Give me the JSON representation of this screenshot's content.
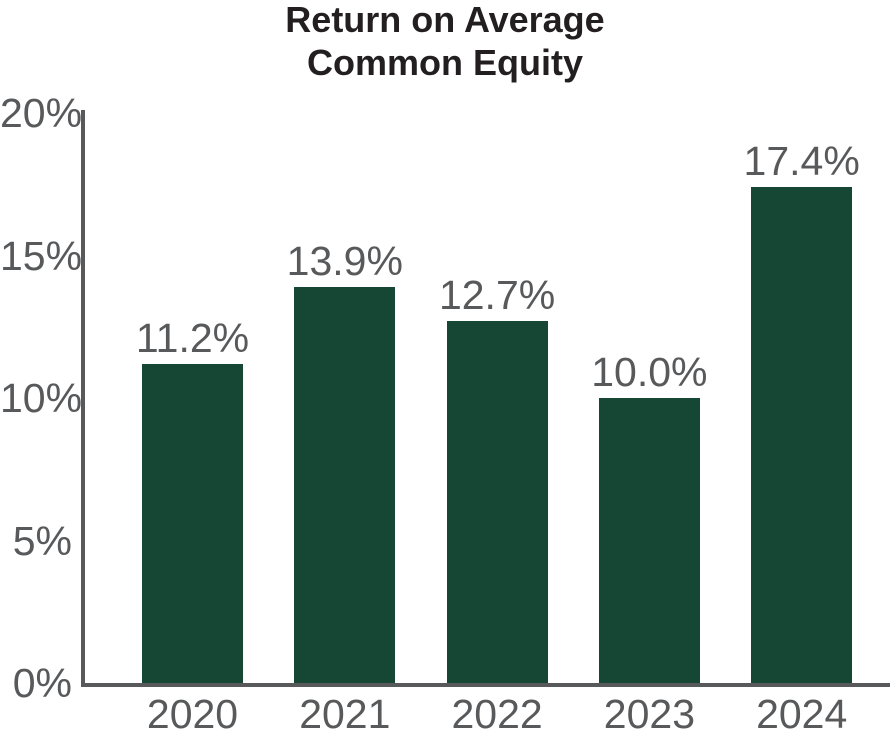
{
  "chart_data": {
    "type": "bar",
    "title": "Return on Average Common Equity",
    "title_lines": [
      "Return on Average",
      "Common Equity"
    ],
    "categories": [
      "2020",
      "2021",
      "2022",
      "2023",
      "2024"
    ],
    "values": [
      11.2,
      13.9,
      12.7,
      10.0,
      17.4
    ],
    "value_labels": [
      "11.2%",
      "13.9%",
      "12.7%",
      "10.0%",
      "17.4%"
    ],
    "y_ticks": [
      {
        "value": 0,
        "label": "0%"
      },
      {
        "value": 5,
        "label": "5%"
      },
      {
        "value": 10,
        "label": "10%"
      },
      {
        "value": 15,
        "label": "15%"
      },
      {
        "value": 20,
        "label": "20%"
      }
    ],
    "xlabel": "",
    "ylabel": "",
    "ylim": [
      0,
      20
    ],
    "grid": false,
    "legend": "none",
    "colors": {
      "bar": "#154734",
      "label": "#58595b",
      "axis": "#58595b",
      "title": "#231f20",
      "background": "#ffffff"
    }
  }
}
